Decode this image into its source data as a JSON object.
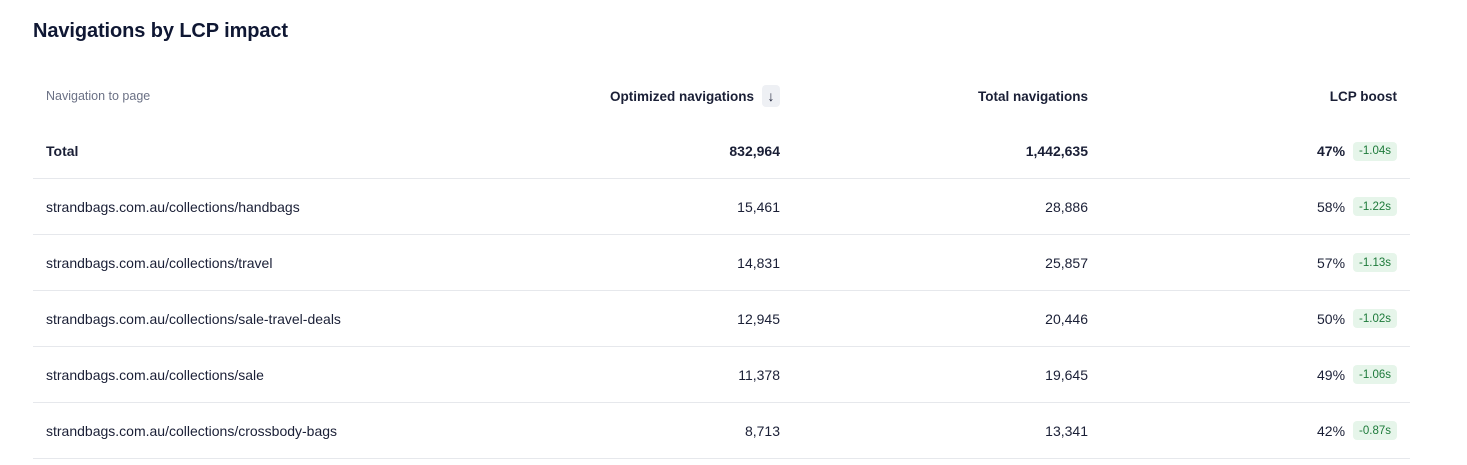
{
  "title": "Navigations by LCP impact",
  "columns": {
    "page": "Navigation to page",
    "optimized": "Optimized navigations",
    "total": "Total navigations",
    "boost": "LCP boost"
  },
  "sort_icon": "↓",
  "total_row": {
    "label": "Total",
    "optimized": "832,964",
    "total": "1,442,635",
    "boost_pct": "47%",
    "boost_delta": "-1.04s"
  },
  "rows": [
    {
      "page": "strandbags.com.au/collections/handbags",
      "optimized": "15,461",
      "total": "28,886",
      "boost_pct": "58%",
      "boost_delta": "-1.22s"
    },
    {
      "page": "strandbags.com.au/collections/travel",
      "optimized": "14,831",
      "total": "25,857",
      "boost_pct": "57%",
      "boost_delta": "-1.13s"
    },
    {
      "page": "strandbags.com.au/collections/sale-travel-deals",
      "optimized": "12,945",
      "total": "20,446",
      "boost_pct": "50%",
      "boost_delta": "-1.02s"
    },
    {
      "page": "strandbags.com.au/collections/sale",
      "optimized": "11,378",
      "total": "19,645",
      "boost_pct": "49%",
      "boost_delta": "-1.06s"
    },
    {
      "page": "strandbags.com.au/collections/crossbody-bags",
      "optimized": "8,713",
      "total": "13,341",
      "boost_pct": "42%",
      "boost_delta": "-0.87s"
    }
  ],
  "colors": {
    "badge_bg": "#e6f5ea",
    "badge_text": "#1d7a3a",
    "divider": "#e6e8ec"
  }
}
